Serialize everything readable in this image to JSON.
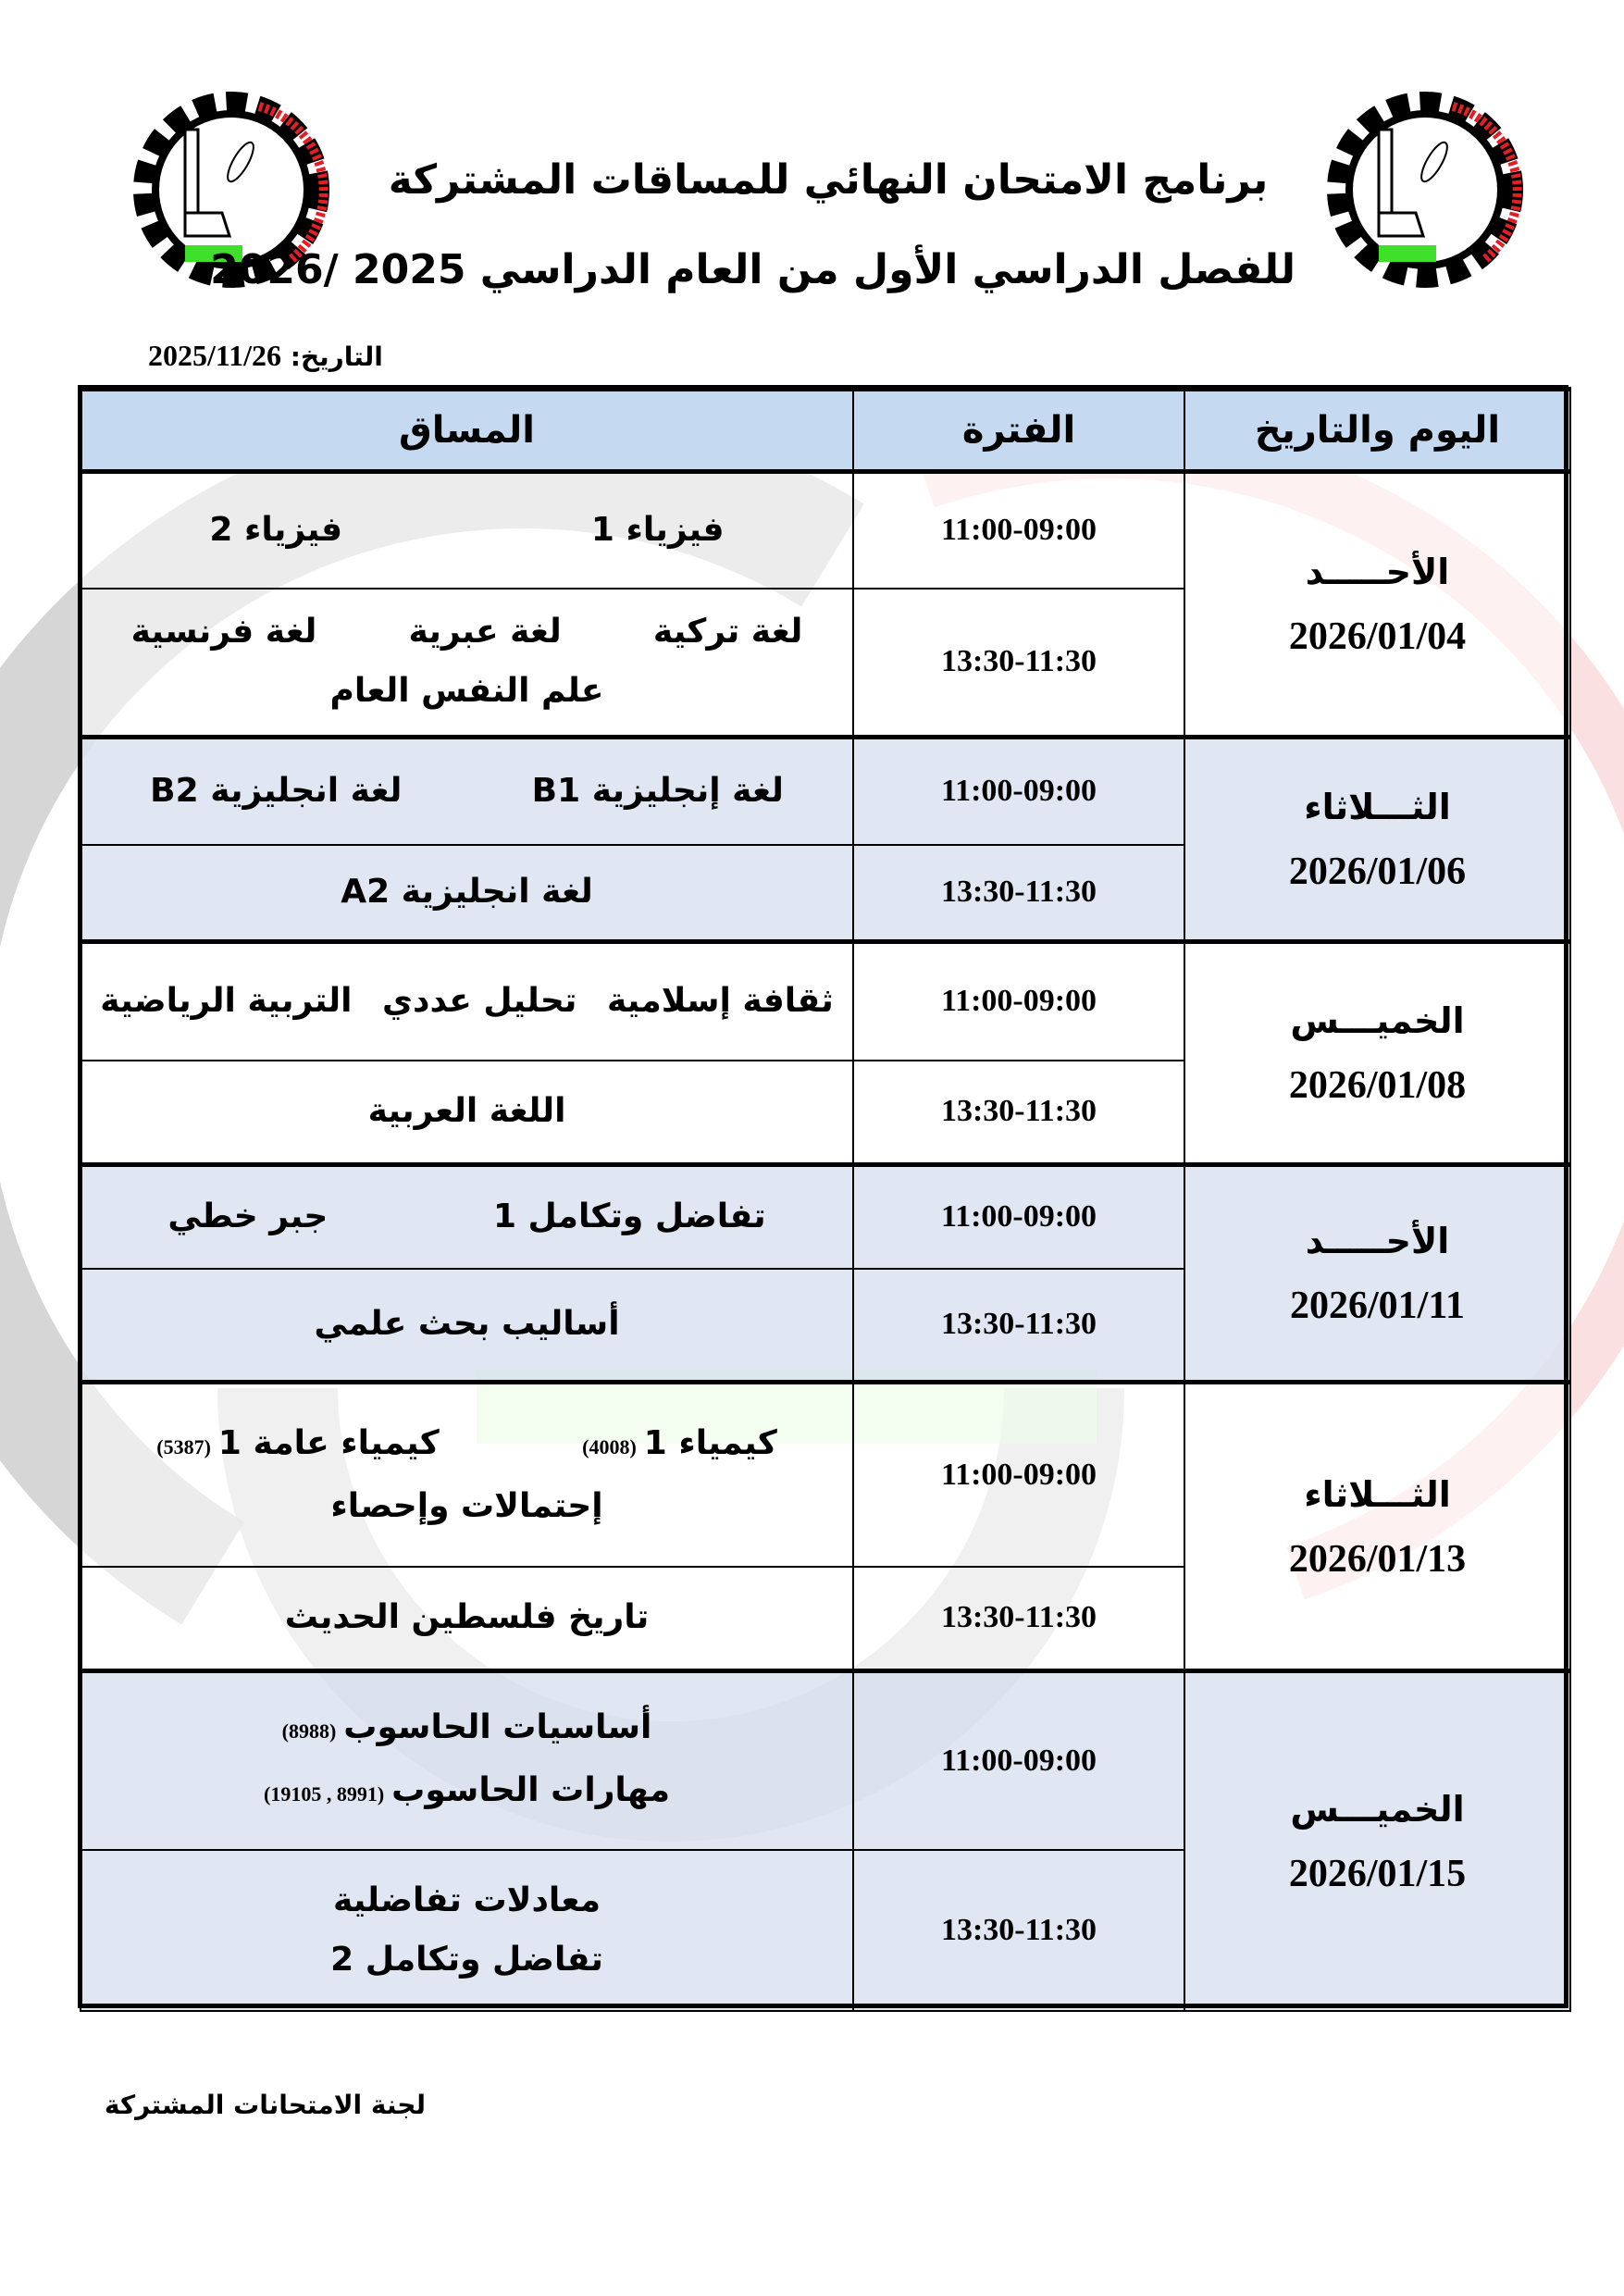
{
  "header": {
    "title_line1": "برنامج الامتحان النهائي  للمساقات المشتركة",
    "title_line2": "للفصل الدراسي الأول من العام الدراسي 2025 /2026",
    "date_label": "التاريخ:",
    "date_value": "2025/11/26",
    "logo_text_en": "Palestine Polytechnic University",
    "logo_text_ar": "جامعة بوليتكنك فلسطين",
    "logo_badge": "رابطة الجامعيين - الخليل"
  },
  "table": {
    "columns": [
      "اليوم والتاريخ",
      "الفترة",
      "المساق"
    ],
    "days": [
      {
        "day": "الأحـــــد",
        "date": "2026/01/04",
        "periods": [
          {
            "time": "11:00-09:00",
            "lines": [
              [
                {
                  "name": "فيزياء 1"
                },
                {
                  "name": "فيزياء 2"
                }
              ]
            ]
          },
          {
            "time": "13:30-11:30",
            "lines": [
              [
                {
                  "name": "لغة تركية"
                },
                {
                  "name": "لغة عبرية"
                },
                {
                  "name": "لغة فرنسية"
                }
              ],
              [
                {
                  "name": "علم النفس العام"
                }
              ]
            ]
          }
        ]
      },
      {
        "day": "الثـــلاثاء",
        "date": "2026/01/06",
        "periods": [
          {
            "time": "11:00-09:00",
            "lines": [
              [
                {
                  "name": "لغة إنجليزية  B1"
                },
                {
                  "name": "لغة انجليزية B2"
                }
              ]
            ]
          },
          {
            "time": "13:30-11:30",
            "lines": [
              [
                {
                  "name": "لغة انجليزية A2"
                }
              ]
            ]
          }
        ]
      },
      {
        "day": "الخميـــس",
        "date": "2026/01/08",
        "periods": [
          {
            "time": "11:00-09:00",
            "lines": [
              [
                {
                  "name": "ثقافة إسلامية"
                },
                {
                  "name": "تحليل عددي"
                },
                {
                  "name": "التربية الرياضية"
                }
              ]
            ]
          },
          {
            "time": "13:30-11:30",
            "lines": [
              [
                {
                  "name": "اللغة العربية"
                }
              ]
            ]
          }
        ]
      },
      {
        "day": "الأحـــــد",
        "date": "2026/01/11",
        "periods": [
          {
            "time": "11:00-09:00",
            "lines": [
              [
                {
                  "name": "تفاضل وتكامل 1"
                },
                {
                  "name": "جبر خطي"
                }
              ]
            ]
          },
          {
            "time": "13:30-11:30",
            "lines": [
              [
                {
                  "name": "أساليب بحث علمي"
                }
              ]
            ]
          }
        ]
      },
      {
        "day": "الثـــلاثاء",
        "date": "2026/01/13",
        "periods": [
          {
            "time": "11:00-09:00",
            "lines": [
              [
                {
                  "name": "كيمياء 1",
                  "code": "(4008)"
                },
                {
                  "name": "كيمياء عامة 1",
                  "code": "(5387)"
                }
              ],
              [
                {
                  "name": "إحتمالات وإحصاء"
                }
              ]
            ]
          },
          {
            "time": "13:30-11:30",
            "lines": [
              [
                {
                  "name": "تاريخ فلسطين الحديث"
                }
              ]
            ]
          }
        ]
      },
      {
        "day": "الخميـــس",
        "date": "2026/01/15",
        "periods": [
          {
            "time": "11:00-09:00",
            "lines": [
              [
                {
                  "name": "أساسيات الحاسوب",
                  "code": "(8988)"
                }
              ],
              [
                {
                  "name": "مهارات الحاسوب",
                  "code": "(8991 , 19105)"
                }
              ]
            ]
          },
          {
            "time": "13:30-11:30",
            "lines": [
              [
                {
                  "name": "معادلات تفاضلية"
                }
              ],
              [
                {
                  "name": "تفاضل وتكامل 2"
                }
              ]
            ]
          }
        ]
      }
    ]
  },
  "footer": {
    "committee": "لجنة الامتحانات المشتركة"
  },
  "colors": {
    "header_bg": "#c5d9f1",
    "row_blue": "#dbe3f0",
    "logo_red": "#e31e24",
    "logo_green": "#3fe02a"
  }
}
